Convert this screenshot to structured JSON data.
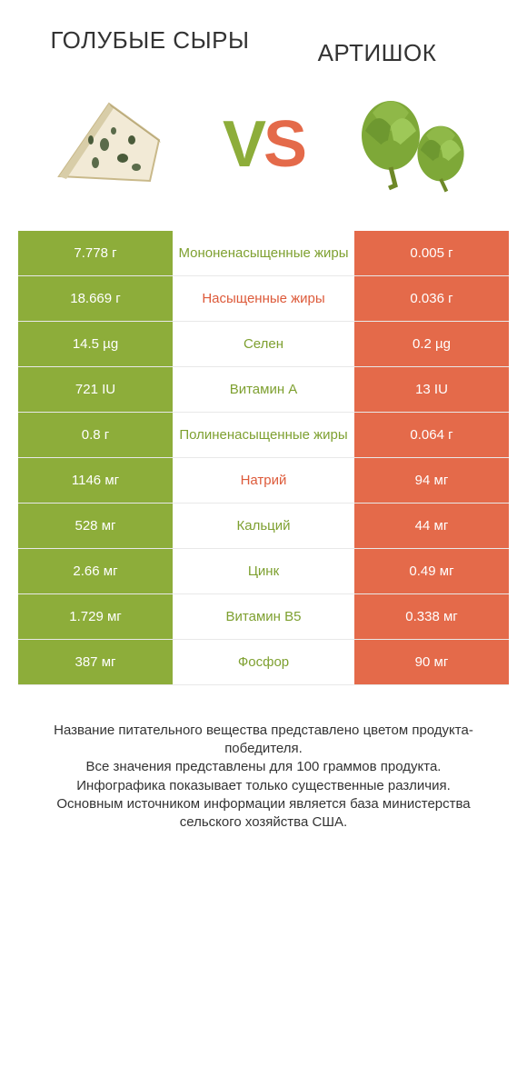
{
  "colors": {
    "green": "#8dad3a",
    "orange": "#e46a4a",
    "green_text": "#7ea030",
    "orange_text": "#dd5a3a",
    "white_bg": "#ffffff"
  },
  "header": {
    "left_title": "ГОЛУБЫЕ СЫРЫ",
    "right_title": "АРТИШОК",
    "vs_v": "V",
    "vs_s": "S"
  },
  "rows": [
    {
      "left": "7.778 г",
      "label": "Мононенасыщенные жиры",
      "right": "0.005 г",
      "winner": "left"
    },
    {
      "left": "18.669 г",
      "label": "Насыщенные жиры",
      "right": "0.036 г",
      "winner": "right"
    },
    {
      "left": "14.5 µg",
      "label": "Селен",
      "right": "0.2 µg",
      "winner": "left"
    },
    {
      "left": "721 IU",
      "label": "Витамин A",
      "right": "13 IU",
      "winner": "left"
    },
    {
      "left": "0.8 г",
      "label": "Полиненасыщенные жиры",
      "right": "0.064 г",
      "winner": "left"
    },
    {
      "left": "1146 мг",
      "label": "Натрий",
      "right": "94 мг",
      "winner": "right"
    },
    {
      "left": "528 мг",
      "label": "Кальций",
      "right": "44 мг",
      "winner": "left"
    },
    {
      "left": "2.66 мг",
      "label": "Цинк",
      "right": "0.49 мг",
      "winner": "left"
    },
    {
      "left": "1.729 мг",
      "label": "Витамин B5",
      "right": "0.338 мг",
      "winner": "left"
    },
    {
      "left": "387 мг",
      "label": "Фосфор",
      "right": "90 мг",
      "winner": "left"
    }
  ],
  "footnote": {
    "line1": "Название питательного вещества представлено цветом продукта-победителя.",
    "line2": "Все значения представлены для 100 граммов продукта.",
    "line3": "Инфографика показывает только существенные различия.",
    "line4": "Основным источником информации является база министерства сельского хозяйства США."
  }
}
